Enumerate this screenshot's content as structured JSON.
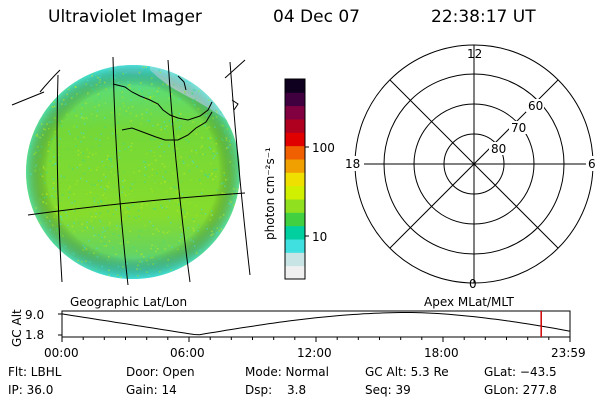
{
  "header": {
    "instrument": "Ultraviolet Imager",
    "date": "04 Dec 07",
    "time": "22:38:17 UT"
  },
  "colorbar": {
    "unit_label": "photon cm⁻²s⁻¹",
    "ticks": [
      {
        "label": "100",
        "value": 100
      },
      {
        "label": "10",
        "value": 10
      }
    ],
    "colors": [
      "#f0f0f0",
      "#c8e4e4",
      "#40e0e0",
      "#00d0a0",
      "#40d040",
      "#90e020",
      "#d0f000",
      "#f0e000",
      "#f0a000",
      "#f06000",
      "#e00000",
      "#b00020",
      "#800040",
      "#400040",
      "#100020"
    ]
  },
  "polar_plot": {
    "mlt_labels": {
      "top": "12",
      "left": "18",
      "right": "6",
      "bottom": "0"
    },
    "lat_labels": [
      "60",
      "70",
      "80"
    ]
  },
  "timeline": {
    "left_title": "Geographic Lat/Lon",
    "right_title": "Apex MLat/MLT",
    "ylabel": "GC Alt",
    "y_ticks": [
      "9.0",
      "1.8"
    ],
    "x_ticks": [
      "00:00",
      "06:00",
      "12:00",
      "18:00",
      "23:59"
    ],
    "current_time_marker_hours": 22.64,
    "marker_color": "#d00000"
  },
  "status": {
    "row1": {
      "filter": "Flt: LBHL",
      "door": "Door: Open",
      "mode": "Mode: Normal",
      "gc_alt": "GC Alt: 5.3 Re",
      "glat": "GLat: −43.5"
    },
    "row2": {
      "ip": "IP: 36.0",
      "gain": "Gain: 14",
      "dsp_label": "Dsp:",
      "dsp_value": "3.8",
      "seq": "Seq: 39",
      "glon": "GLon: 277.8"
    }
  }
}
